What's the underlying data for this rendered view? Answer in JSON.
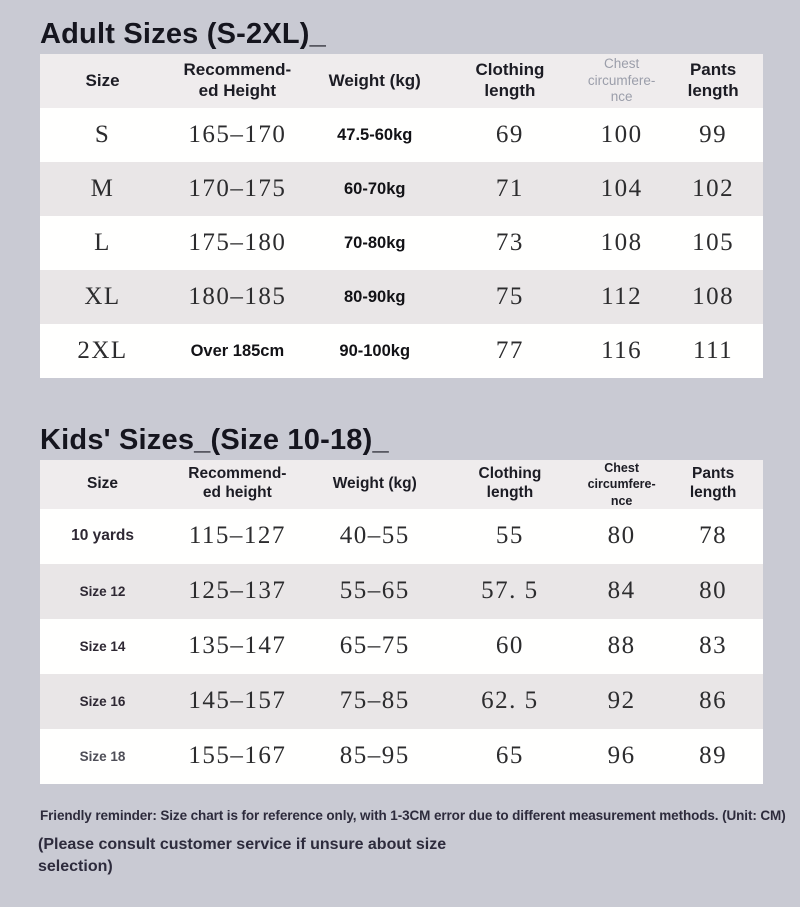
{
  "adult_section": {
    "title": "Adult Sizes (S-2XL)_",
    "table": {
      "columns": [
        "Size",
        "Recommend-\ned Height",
        "Weight (kg)",
        "Clothing\nlength",
        "Chest\ncircumfere-\nnce",
        "Pants\nlength"
      ],
      "rows": [
        [
          "S",
          "165–170",
          "47.5-60kg",
          "69",
          "100",
          "99"
        ],
        [
          "M",
          "170–175",
          "60-70kg",
          "71",
          "104",
          "102"
        ],
        [
          "L",
          "175–180",
          "70-80kg",
          "73",
          "108",
          "105"
        ],
        [
          "XL",
          "180–185",
          "80-90kg",
          "75",
          "112",
          "108"
        ],
        [
          "2XL",
          "Over 185cm",
          "90-100kg",
          "77",
          "116",
          "111"
        ]
      ]
    }
  },
  "kids_section": {
    "title": "Kids' Sizes_(Size 10-18)_",
    "table": {
      "columns": [
        "Size",
        "Recommend-\ned height",
        "Weight (kg)",
        "Clothing\nlength",
        "Chest\ncircumfere-\nnce",
        "Pants\nlength"
      ],
      "rows": [
        [
          "10 yards",
          "115–127",
          "40–55",
          "55",
          "80",
          "78"
        ],
        [
          "Size 12",
          "125–137",
          "55–65",
          "57. 5",
          "84",
          "80"
        ],
        [
          "Size 14",
          "135–147",
          "65–75",
          "60",
          "88",
          "83"
        ],
        [
          "Size 16",
          "145–157",
          "75–85",
          "62. 5",
          "92",
          "86"
        ],
        [
          "Size 18",
          "155–167",
          "85–95",
          "65",
          "96",
          "89"
        ]
      ]
    }
  },
  "notes": {
    "reminder": "Friendly reminder: Size chart is for reference only, with 1-3CM error due to different measurement methods. (Unit: CM)",
    "consult": "(Please consult customer service if unsure about size selection)"
  },
  "colors": {
    "page_background": "#c9cad3",
    "table_header_background": "#efeced",
    "row_background": "#fffffe",
    "row_alt_background": "#e9e6e7",
    "title_text": "#15151e",
    "muted_chest_header_text": "#9b9eaa",
    "note_text": "#2d2b3c"
  }
}
